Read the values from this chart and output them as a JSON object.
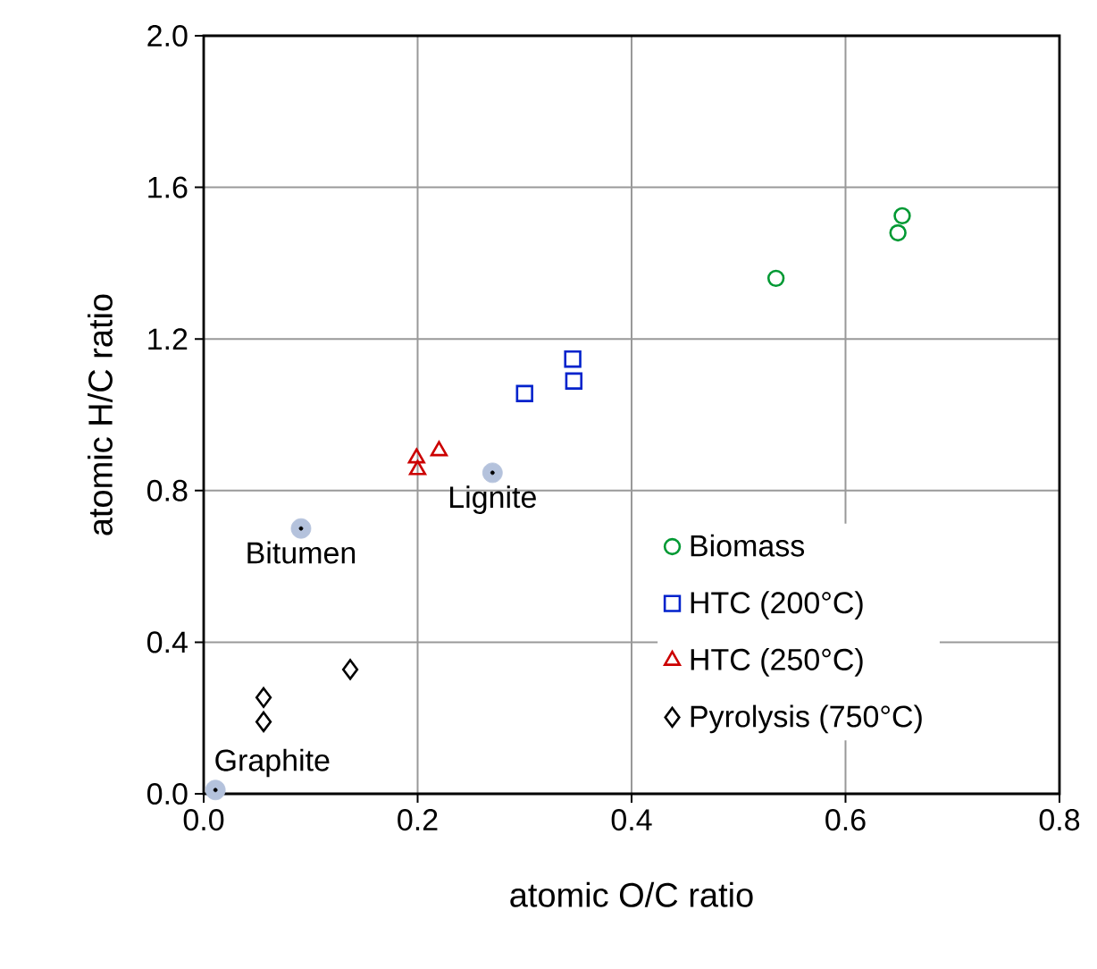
{
  "chart_data": {
    "type": "scatter",
    "xlabel": "atomic O/C ratio",
    "ylabel": "atomic H/C ratio",
    "xlim": [
      0,
      0.8
    ],
    "ylim": [
      0,
      2.0
    ],
    "xticks": [
      {
        "value": 0,
        "label": "0.0"
      },
      0.2,
      0.4,
      0.6,
      0.8
    ],
    "yticks": [
      {
        "value": 0,
        "label": "0.0"
      },
      0.4,
      0.8,
      1.2,
      1.6,
      {
        "value": 2.0,
        "label": "2.0"
      }
    ],
    "grid": true,
    "legend": "right",
    "series": [
      {
        "name": "Biomass",
        "color": "#009933",
        "marker": "circle",
        "x": [
          0.535,
          0.653,
          0.649
        ],
        "values": [
          1.36,
          1.525,
          1.48
        ]
      },
      {
        "name": "HTC (200°C)",
        "color": "#0022cc",
        "marker": "square",
        "x": [
          0.3,
          0.345,
          0.346
        ],
        "values": [
          1.056,
          1.147,
          1.089
        ]
      },
      {
        "name": "HTC (250°C)",
        "color": "#cc0000",
        "marker": "triangle",
        "x": [
          0.22,
          0.199,
          0.2
        ],
        "values": [
          0.905,
          0.886,
          0.855
        ]
      },
      {
        "name": "Pyrolysis (750°C)",
        "color": "#000000",
        "marker": "diamond",
        "x": [
          0.137,
          0.056,
          0.056
        ],
        "values": [
          0.328,
          0.254,
          0.19
        ]
      },
      {
        "color": "#b4c2dc",
        "marker": "circle",
        "x": [
          0.27,
          0.091,
          0.011
        ],
        "values": [
          0.847,
          0.7,
          0.01
        ]
      }
    ],
    "annotations": [
      {
        "text": "Lignite",
        "x": 0.27,
        "y": 0.847
      },
      {
        "text": "Bitumen",
        "x": 0.091,
        "y": 0.7
      },
      {
        "text": "Graphite",
        "x": 0.011,
        "y": 0.01
      }
    ]
  }
}
